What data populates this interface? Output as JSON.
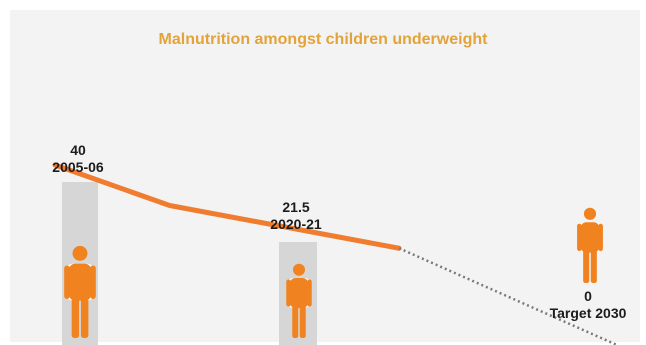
{
  "chart_data": {
    "type": "line",
    "title": "Malnutrition amongst children underweight",
    "x": [
      2005.5,
      2010.5,
      2020.5,
      2030
    ],
    "values": [
      40,
      31,
      21.5,
      0
    ],
    "segments": [
      {
        "style": "solid",
        "from_index": 0,
        "to_index": 2
      },
      {
        "style": "dotted",
        "from_index": 2,
        "to_index": 3
      }
    ],
    "labels": [
      {
        "value": "40",
        "period": "2005-06"
      },
      {
        "value": "21.5",
        "period": "2020-21"
      },
      {
        "value": "0",
        "period": "Target 2030"
      }
    ],
    "ylim": [
      0,
      48
    ]
  },
  "colors": {
    "line": "#f07c2f",
    "dotted": "#7a7a7a",
    "title": "#e3a33b",
    "figure": "#f0831f",
    "bar": "#d6d6d6",
    "background": "#f3f3f3"
  },
  "icons": [
    "child-figure-icon"
  ]
}
